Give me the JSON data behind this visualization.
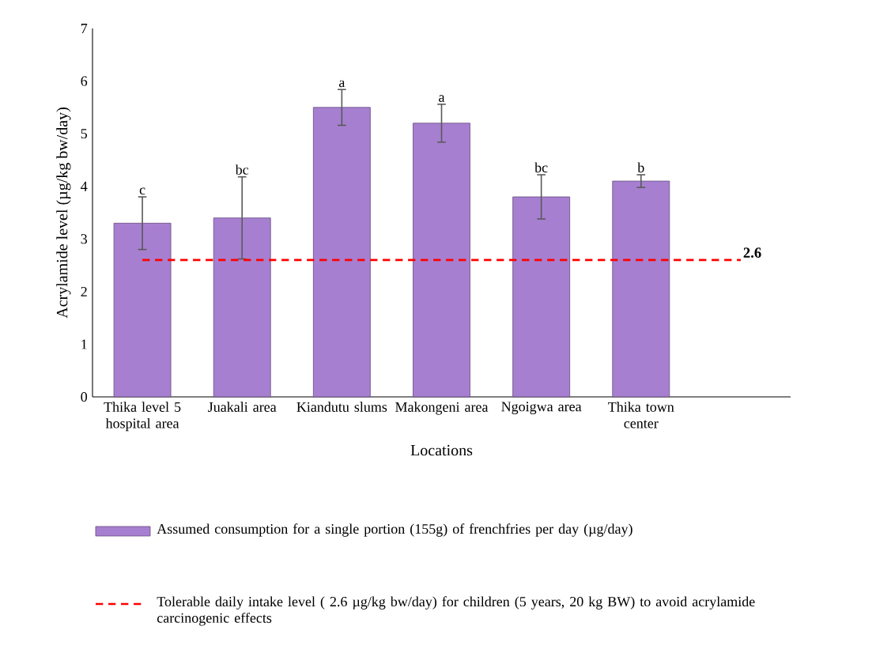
{
  "chart_data": {
    "type": "bar",
    "xlabel": "Locations",
    "ylabel": "Acrylamide level (µg/kg bw/day)",
    "categories": [
      "Thika level 5 hospital area",
      "Juakali area",
      "Kiandutu slums",
      "Makongeni area",
      "Ngoigwa area",
      "Thika town center",
      null
    ],
    "series": [
      {
        "name": "Assumed consumption for a single portion (155g) of frenchfries per day (µg/day)",
        "color": "#a77fd0",
        "values": [
          3.3,
          3.4,
          5.5,
          5.2,
          3.8,
          4.1,
          null
        ],
        "errors": [
          0.5,
          0.78,
          0.34,
          0.36,
          0.42,
          0.12,
          null
        ]
      },
      {
        "name": "Tolerable daily intake level ( 2.6 µg/kg bw/day) for children (5 years, 20 kg BW) to avoid acrylamide carcinogenic effects",
        "type": "line",
        "color": "#ff0000",
        "line_style": "dashed",
        "values": [
          2.6,
          2.6,
          2.6,
          2.6,
          2.6,
          2.6,
          2.6
        ],
        "value_labels": [
          null,
          null,
          null,
          null,
          null,
          null,
          "2.6"
        ]
      }
    ],
    "annotations": [
      "c",
      "bc",
      "a",
      "a",
      "bc",
      "b"
    ],
    "ylim": [
      0,
      7
    ],
    "yticks": [
      0,
      1,
      2,
      3,
      4,
      5,
      6,
      7
    ],
    "legend": "bottom"
  }
}
